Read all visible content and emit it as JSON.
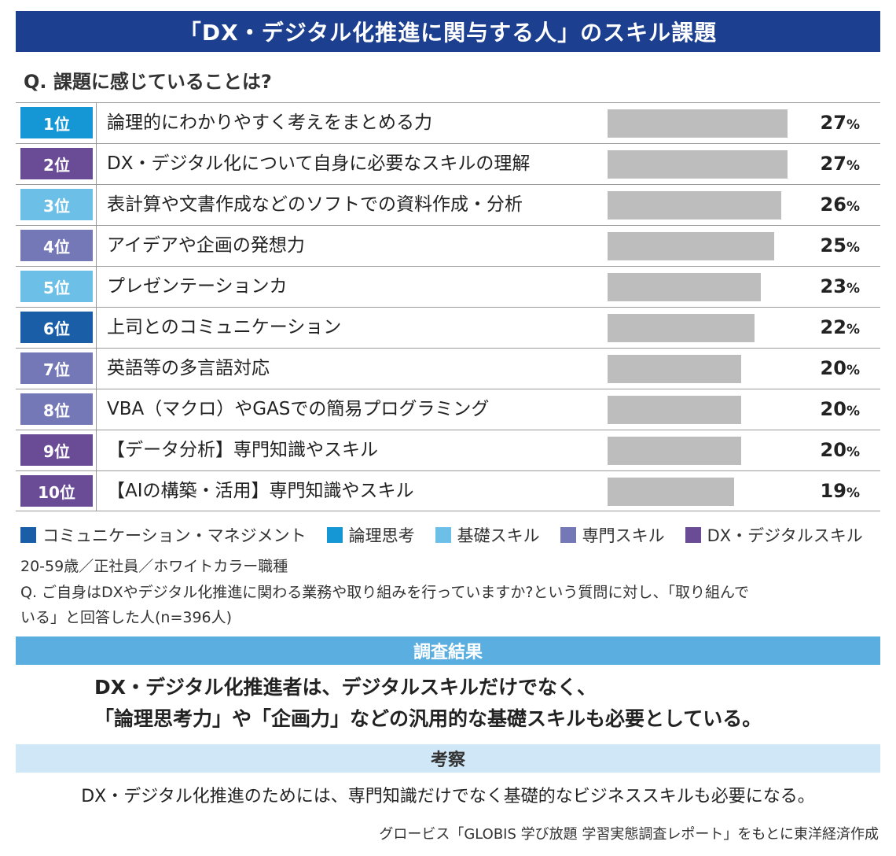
{
  "title": "「DX・デジタル化推進に関与する人」のスキル課題",
  "question": "Q. 課題に感じていることは?",
  "colors": {
    "communication": "#1a5ea8",
    "logic": "#1597d6",
    "basic": "#6cc0e8",
    "specialist": "#7578b6",
    "dx": "#6a4b96",
    "bar": "#bdbdbd",
    "title_bg": "#1c3f8f"
  },
  "chart_data": {
    "type": "bar",
    "orientation": "horizontal",
    "unit": "%",
    "categories": [
      "論理的にわかりやすく考えをまとめる力",
      "DX・デジタル化について自身に必要なスキルの理解",
      "表計算や文書作成などのソフトでの資料作成・分析",
      "アイデアや企画の発想力",
      "プレゼンテーションカ",
      "上司とのコミュニケーション",
      "英語等の多言語対応",
      "VBA（マクロ）やGASでの簡易プログラミング",
      "【データ分析】専門知識やスキル",
      "【AIの構築・活用】専門知識やスキル"
    ],
    "values": [
      27,
      27,
      26,
      25,
      23,
      22,
      20,
      20,
      20,
      19
    ],
    "ranks": [
      "1位",
      "2位",
      "3位",
      "4位",
      "5位",
      "6位",
      "7位",
      "8位",
      "9位",
      "10位"
    ],
    "rank_categories": [
      "logic",
      "dx",
      "basic",
      "specialist",
      "basic",
      "communication",
      "specialist",
      "specialist",
      "dx",
      "dx"
    ],
    "xlim": [
      0,
      27
    ]
  },
  "legend": [
    {
      "key": "communication",
      "label": "コミュニケーション・マネジメント"
    },
    {
      "key": "logic",
      "label": "論理思考"
    },
    {
      "key": "basic",
      "label": "基礎スキル"
    },
    {
      "key": "specialist",
      "label": "専門スキル"
    },
    {
      "key": "dx",
      "label": "DX・デジタルスキル"
    }
  ],
  "notes": {
    "line1": "20-59歳／正社員／ホワイトカラー職種",
    "line2": "Q. ご自身はDXやデジタル化推進に関わる業務や取り組みを行っていますか?という質問に対し、「取り組んで",
    "line3": "いる」と回答した人(n=396人)"
  },
  "result": {
    "heading": "調査結果",
    "line1": "DX・デジタル化推進者は、デジタルスキルだけでなく、",
    "line2": "「論理思考力」や「企画力」などの汎用的な基礎スキルも必要としている。"
  },
  "discussion": {
    "heading": "考察",
    "text": "DX・デジタル化推進のためには、専門知識だけでなく基礎的なビジネススキルも必要になる。"
  },
  "source": "グロービス「GLOBIS 学び放題 学習実態調査レポート」をもとに東洋経済作成"
}
